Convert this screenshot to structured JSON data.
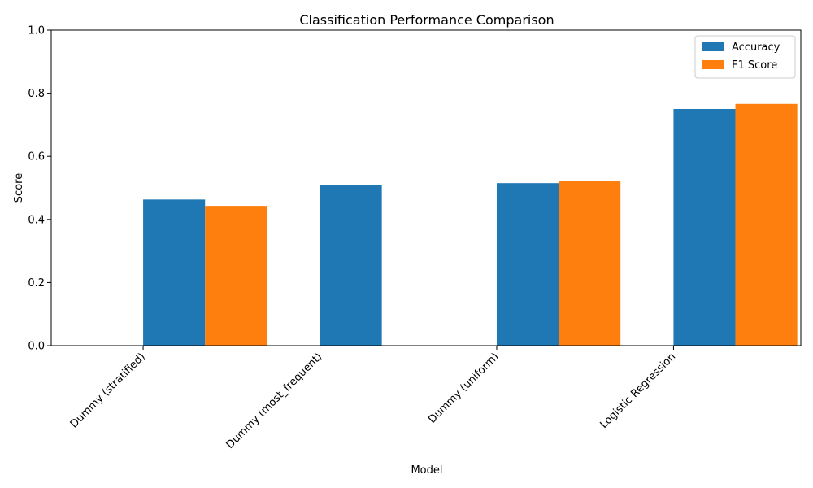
{
  "chart_data": {
    "type": "bar",
    "title": "Classification Performance Comparison",
    "xlabel": "Model",
    "ylabel": "Score",
    "ylim": [
      0,
      1
    ],
    "yticks": [
      0.0,
      0.2,
      0.4,
      0.6,
      0.8,
      1.0
    ],
    "ytick_labels": [
      "0.0",
      "0.2",
      "0.4",
      "0.6",
      "0.8",
      "1.0"
    ],
    "categories": [
      "Dummy (stratified)",
      "Dummy (most_frequent)",
      "Dummy (uniform)",
      "Logistic Regression"
    ],
    "series": [
      {
        "name": "Accuracy",
        "color": "#1f77b4",
        "values": [
          0.463,
          0.51,
          0.515,
          0.75
        ]
      },
      {
        "name": "F1 Score",
        "color": "#ff7f0e",
        "values": [
          0.443,
          0.0,
          0.523,
          0.766
        ]
      }
    ],
    "legend_position": "top-right",
    "grid": false
  }
}
